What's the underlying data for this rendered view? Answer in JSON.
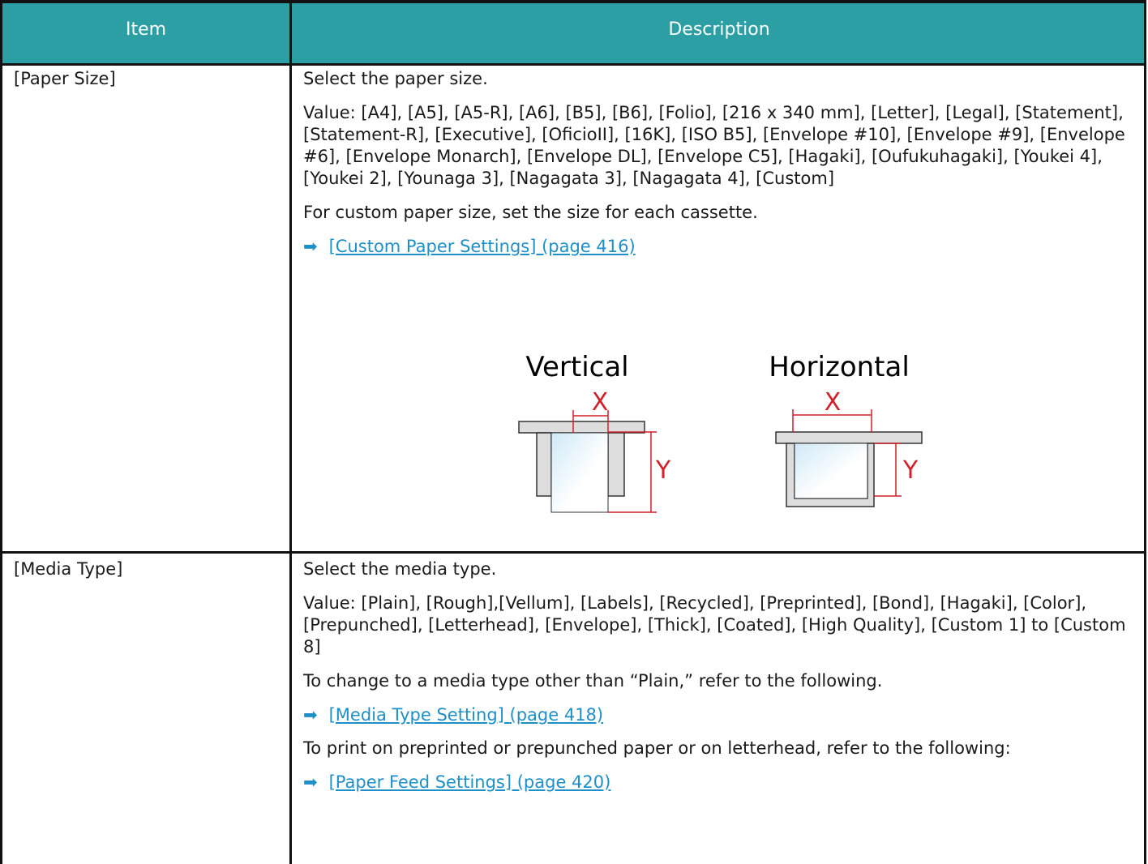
{
  "table": {
    "header": [
      "Item",
      "Description"
    ],
    "rows": [
      {
        "item": "[Paper Size]",
        "content": [
          {
            "text": "Select the paper size."
          },
          {
            "text": "Value: [A4], [A5], [A5-R], [A6], [B5], [B6], [Folio], [216 x 340 mm], [Letter], [Legal], [Statement], [Statement-R], [Executive], [OficioII], [16K], [ISO B5], [Envelope #10], [Envelope #9], [Envelope #6], [Envelope Monarch], [Envelope DL], [Envelope C5], [Hagaki], [Oufukuhagaki], [Youkei 4], [Youkei 2], [Younaga 3], [Nagagata 3], [Nagagata 4], [Custom]"
          },
          {
            "text": "For custom paper size, set the size for each cassette."
          },
          {
            "link": "[Custom Paper Settings] (page 416)"
          }
        ],
        "figure": {
          "vertical": {
            "title": "Vertical",
            "x": "X",
            "y": "Y"
          },
          "horizontal": {
            "title": "Horizontal",
            "x": "X",
            "y": "Y"
          }
        }
      },
      {
        "item": "[Media Type]",
        "content": [
          {
            "text": "Select the media type."
          },
          {
            "text": "Value: [Plain], [Rough],[Vellum], [Labels], [Recycled], [Preprinted], [Bond], [Hagaki], [Color], [Prepunched], [Letterhead], [Envelope], [Thick], [Coated], [High Quality], [Custom 1] to [Custom 8]"
          },
          {
            "text": "To change to a media type other than “Plain,” refer to the following."
          },
          {
            "link": "[Media Type Setting] (page 418)"
          },
          {
            "text": "To print on preprinted or prepunched paper or on letterhead, refer to the following:"
          },
          {
            "link": "[Paper Feed Settings] (page 420)"
          }
        ]
      }
    ]
  }
}
